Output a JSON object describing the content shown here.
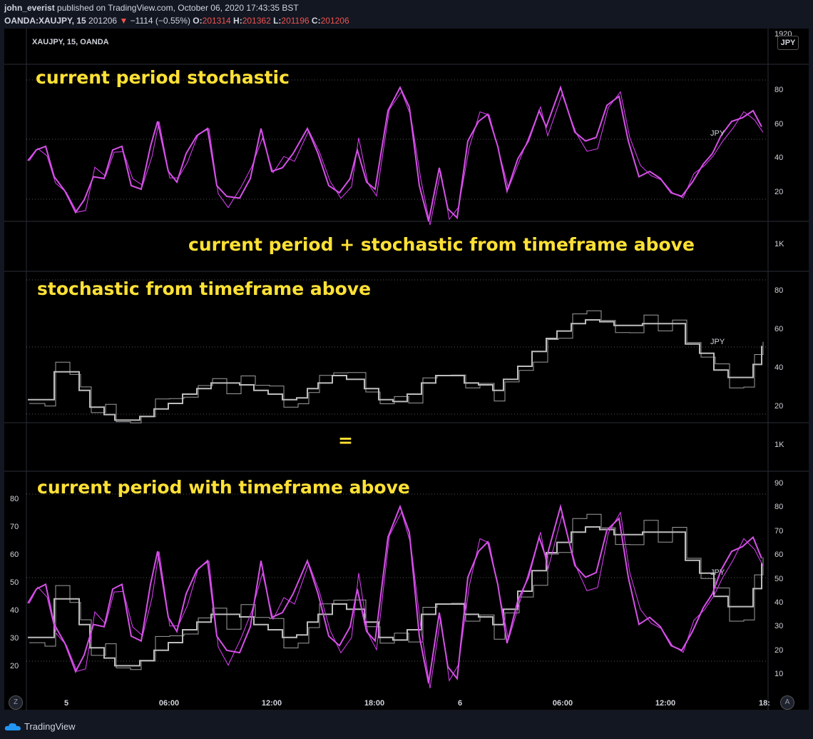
{
  "header": {
    "author": "john_everist",
    "published_text": "published on TradingView.com, October 06, 2020 17:43:35 BST",
    "symbol_line": "OANDA:XAUJPY, 15",
    "price": "201206",
    "change_arrow": "▼",
    "change": "−1114 (−0.55%)",
    "o_label": "O:",
    "o_value": "201314",
    "h_label": "H:",
    "h_value": "201362",
    "l_label": "L:",
    "l_value": "201196",
    "c_label": "C:",
    "c_value": "201206"
  },
  "chart": {
    "symbol_title": "XAUJPY, 15, OANDA",
    "currency_button": "JPY",
    "top_scale_label": "1920",
    "jpy_watermark": "JPY"
  },
  "annotations": {
    "pane1": "current period stochastic",
    "gap1": "current period + stochastic from timeframe above",
    "pane2": "stochastic from timeframe above",
    "gap2": "=",
    "pane3": "current period with timeframe above"
  },
  "axes": {
    "pane1_right_ticks": [
      "80",
      "60",
      "40",
      "20"
    ],
    "gap_label": "1K",
    "pane2_right_ticks": [
      "80",
      "60",
      "40",
      "20"
    ],
    "pane3_right_ticks": [
      "90",
      "80",
      "70",
      "60",
      "50",
      "40",
      "30",
      "20",
      "10"
    ],
    "pane3_left_ticks": [
      "80",
      "70",
      "60",
      "50",
      "40",
      "30",
      "20"
    ],
    "x_ticks": [
      "5",
      "06:00",
      "12:00",
      "18:00",
      "6",
      "06:00",
      "12:00",
      "18:"
    ]
  },
  "footer": {
    "brand": "TradingView",
    "left_button": "Z",
    "right_button": "A"
  },
  "colors": {
    "stoch_fast": "#e040fb",
    "stoch_slow": "#d651e8",
    "htf_fast": "#9e9e9e",
    "htf_slow": "#bdbdbd",
    "annotation": "#ffe135",
    "price_down": "#ef5350"
  }
}
